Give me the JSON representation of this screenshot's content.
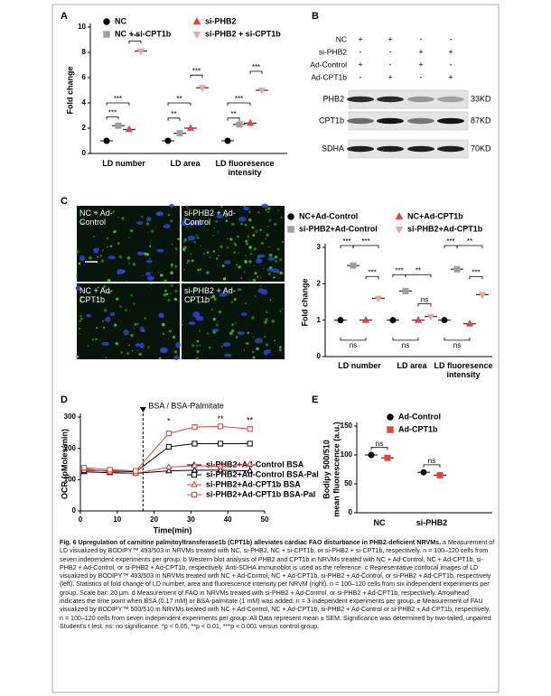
{
  "chart_data": [
    {
      "type": "dotplot",
      "panel": "A",
      "ylabel": "Fold change",
      "categories": [
        "LD number",
        "LD area",
        "LD fluoresence intensity"
      ],
      "series": [
        {
          "name": "NC",
          "color": "#000000",
          "marker": "circle",
          "values": [
            1.0,
            1.0,
            1.0
          ]
        },
        {
          "name": "si-PHB2",
          "color": "#e8423f",
          "marker": "triangle",
          "values": [
            1.9,
            2.0,
            2.4
          ]
        },
        {
          "name": "NC + si-CPT1b",
          "color": "#9e9e9e",
          "marker": "square",
          "values": [
            2.2,
            1.6,
            2.3
          ]
        },
        {
          "name": "si-PHB2 + si-CPT1b",
          "color": "#f4a09c",
          "marker": "triangle-down",
          "values": [
            8.1,
            5.2,
            5.0
          ]
        }
      ],
      "ylim": [
        0,
        10
      ],
      "yticks": [
        0,
        2,
        4,
        6,
        8,
        10
      ],
      "annotations": [
        "***",
        "***",
        "***",
        "**",
        "**",
        "***",
        "**",
        "***",
        "***"
      ]
    },
    {
      "type": "dotplot",
      "ylabel": "Fold change",
      "categories": [
        "LD number",
        "LD area",
        "LD fluoresence intensity"
      ],
      "series": [
        {
          "name": "NC+Ad-Control",
          "color": "#000000",
          "marker": "circle",
          "values": [
            1.0,
            1.0,
            1.0
          ]
        },
        {
          "name": "NC+Ad-CPT1b",
          "color": "#e8423f",
          "marker": "triangle",
          "values": [
            1.0,
            1.0,
            0.9
          ]
        },
        {
          "name": "si-PHB2+Ad-Control",
          "color": "#9e9e9e",
          "marker": "square",
          "values": [
            2.5,
            1.8,
            2.4
          ]
        },
        {
          "name": "si-PHB2+Ad-CPT1b",
          "color": "#f4a09c",
          "marker": "triangle-down",
          "values": [
            1.6,
            1.1,
            1.7
          ]
        }
      ],
      "ylim": [
        0,
        3
      ],
      "yticks": [
        0,
        1,
        2,
        3
      ],
      "annotations": [
        "***",
        "***",
        "***",
        "ns",
        "***",
        "**",
        "ns",
        "ns",
        "***",
        "**",
        "***",
        "ns"
      ]
    },
    {
      "type": "line",
      "panel": "D",
      "ylabel": "OCR (pMoles/min)",
      "xlabel": "Time(min)",
      "x": [
        1,
        8,
        15,
        24,
        31,
        38,
        46
      ],
      "series": [
        {
          "name": "si-PHB2+Ad-Control BSA",
          "color": "#000000",
          "marker": "triangle",
          "values": [
            125,
            122,
            120,
            128,
            130,
            130,
            128
          ]
        },
        {
          "name": "si-PHB2+Ad-Control BSA-Pal",
          "color": "#000000",
          "marker": "square",
          "values": [
            130,
            128,
            125,
            205,
            215,
            215,
            215
          ]
        },
        {
          "name": "si-PHB2+Ad-CPT1b BSA",
          "color": "#e8423f",
          "marker": "triangle",
          "values": [
            135,
            125,
            120,
            140,
            145,
            142,
            150
          ]
        },
        {
          "name": "si-PHB2+Ad-CPT1b BSA-Pal",
          "color": "#e8423f",
          "marker": "square",
          "values": [
            138,
            132,
            128,
            248,
            268,
            270,
            262
          ]
        }
      ],
      "xlim": [
        0,
        50
      ],
      "xticks": [
        0,
        10,
        20,
        30,
        40,
        50
      ],
      "ylim": [
        0,
        300
      ],
      "yticks": [
        0,
        100,
        200,
        300
      ],
      "annotations": [
        "BSA / BSA-Palmitate",
        "*",
        "**",
        "**"
      ]
    },
    {
      "type": "dotplot",
      "panel": "E",
      "ylabel": [
        "Bodipy 500/510",
        "mean fluorescence (a.u.)"
      ],
      "categories": [
        "NC",
        "si-PHB2"
      ],
      "series": [
        {
          "name": "Ad-Control",
          "color": "#000000",
          "marker": "circle",
          "values": [
            100,
            70
          ]
        },
        {
          "name": "Ad-CPT1b",
          "color": "#e8423f",
          "marker": "square",
          "values": [
            95,
            65
          ]
        }
      ],
      "ylim": [
        0,
        150
      ],
      "yticks": [
        0,
        50,
        100,
        150
      ],
      "annotations": [
        "ns",
        "ns"
      ]
    }
  ],
  "blot": {
    "panel": "B",
    "conditions": [
      {
        "name": "NC",
        "signs": [
          "+",
          "+",
          "-",
          "-"
        ]
      },
      {
        "name": "si-PHB2",
        "signs": [
          "-",
          "-",
          "+",
          "+"
        ]
      },
      {
        "name": "Ad-Control",
        "signs": [
          "+",
          "-",
          "+",
          "-"
        ]
      },
      {
        "name": "Ad-CPT1b",
        "signs": [
          "-",
          "+",
          "-",
          "+"
        ]
      }
    ],
    "bands": [
      {
        "name": "PHB2",
        "size": "33KD"
      },
      {
        "name": "CPT1b",
        "size": "87KD"
      },
      {
        "name": "SDHA",
        "size": "70KD"
      }
    ]
  },
  "images": {
    "panel": "C",
    "labels": [
      "NC + Ad-Control",
      "si-PHB2 + Ad-Control",
      "NC + Ad-CPT1b",
      "si-PHB2 + Ad-CPT1b"
    ]
  },
  "caption": {
    "title": "Fig. 6 Upregulation of carnitine palmitoyltransferase1b (CPT1b) alleviates cardiac FAO disturbance in PHB2-deficient NRVMs.",
    "text": "a Measurement of LD visualized by BODIPY™ 493/503 in NRVMs treated with NC, si-PHB2, NC + si-CPT1b, or si-PHB2 + si-CPT1b, respectively. n = 100–120 cells from seven independent experiments per group. b Western blot analysis of PHB2 and CPT1b in NRVMs treated with NC + Ad-Control, NC + Ad-CPT1b, si-PHB2 + Ad-Control, or si-PHB2 + Ad-CPT1b, respectively. Anti-SDHA immunoblot is used as the reference. c Representative confocal images of LD visualized by BODIPY™ 493/503 in NRVMs treated with NC + Ad-Control, NC + Ad-CPT1b, si-PHB2 + Ad-Control, or si-PHB2 + Ad-CPT1b, respectively (left). Statistics of fold change of LD number, area and fluorescence intensity per NRVM (right). n = 100–120 cells from six independent experiments per group. Scale bar: 20 μm. d Measurement of FAO in NRVMs treated with si-PHB2 + Ad-Control, or si-PHB2 + Ad-CPT1b, respectively. Arrowhead indicates the time point when BSA (0.17 mM) or BSA-palmitate (1 mM) was added. n = 3 independent experiments per group. e Measurement of FAU visualized by BODIPY™ 500/510 in NRVMs treated with NC + Ad-Control, NC + Ad-CPT1b, si-PHB2 + Ad-Control or si-PHB2 + Ad-CPT1b, respectively. n = 100–120 cells from seven independent experiments per group. All Data represent mean ± SEM. Significance was determined by two-tailed, unpaired Student's t test. ns: no significance. *p < 0.05, **p < 0.01, ***p < 0.001 versus control group."
  }
}
